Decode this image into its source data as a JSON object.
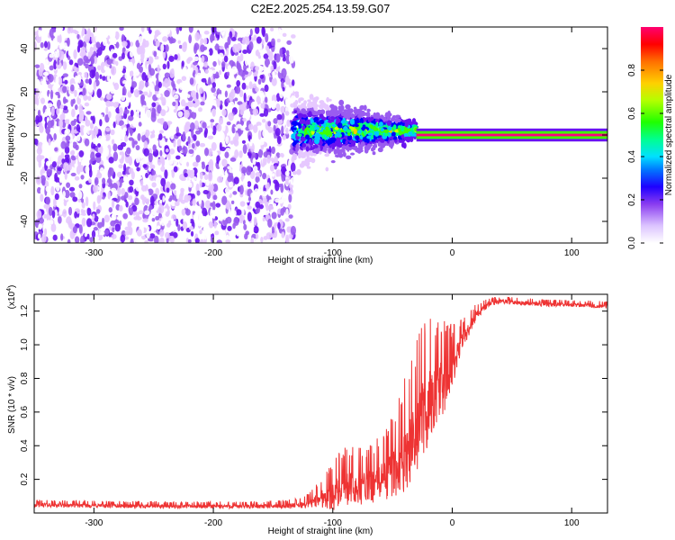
{
  "figure_title": "C2E2.2025.254.13.59.G07",
  "colorbar": {
    "label": "Normalized spectral amplitude",
    "ticks": [
      "0.0",
      "0.2",
      "0.4",
      "0.6",
      "0.8"
    ]
  },
  "chart_data": [
    {
      "type": "heatmap",
      "title": "C2E2.2025.254.13.59.G07",
      "xlabel": "Height of straight line (km)",
      "ylabel": "Frequency (Hz)",
      "xlim": [
        -350,
        130
      ],
      "ylim": [
        -50,
        50
      ],
      "x_ticks": [
        -300,
        -200,
        -100,
        0,
        100
      ],
      "y_ticks": [
        -40,
        -20,
        0,
        20,
        40
      ],
      "x_tick_labels": [
        "-300",
        "-200",
        "-100",
        "0",
        "100"
      ],
      "y_tick_labels": [
        "-40",
        "-20",
        "0",
        "20",
        "40"
      ],
      "colorscale": [
        "#ffffff",
        "#e6c8ff",
        "#9a5cf0",
        "#6a14f0",
        "#0000ff",
        "#00c8ff",
        "#00ff80",
        "#40ff00",
        "#c8ff00",
        "#ffc800",
        "#ff8000",
        "#ff0000",
        "#ff0080"
      ],
      "value_range": [
        0,
        1
      ],
      "regions": [
        {
          "x_range": [
            -350,
            -133
          ],
          "freq_range": [
            -50,
            50
          ],
          "amplitude": 0.1,
          "pattern": "diffuse noise"
        },
        {
          "x_range": [
            -133,
            -30
          ],
          "freq_center": 2,
          "freq_halfwidth_start": 12,
          "freq_halfwidth_end": 3,
          "amplitude_peak": 0.4,
          "pattern": "converging band"
        },
        {
          "x_range": [
            -30,
            130
          ],
          "freq_center": 0,
          "freq_halfwidth": 1,
          "amplitude": 1.0,
          "pattern": "narrow carrier line"
        }
      ],
      "grid": false
    },
    {
      "type": "line",
      "xlabel": "Height of straight line (km)",
      "ylabel": "SNR (10 * v/v)",
      "y_multiplier_label": "(x10",
      "y_multiplier_exp": "4",
      "xlim": [
        -350,
        130
      ],
      "ylim": [
        0,
        13000
      ],
      "x_ticks": [
        -300,
        -200,
        -100,
        0,
        100
      ],
      "y_ticks": [
        2000,
        4000,
        6000,
        8000,
        10000,
        12000
      ],
      "x_tick_labels": [
        "-300",
        "-200",
        "-100",
        "0",
        "100"
      ],
      "y_tick_labels": [
        "0.2",
        "0.4",
        "0.6",
        "0.8",
        "1.0",
        "1.2"
      ],
      "color": "#ee3333",
      "x": [
        -350,
        -300,
        -250,
        -200,
        -150,
        -125,
        -110,
        -100,
        -90,
        -80,
        -70,
        -60,
        -50,
        -40,
        -30,
        -25,
        -20,
        -15,
        -10,
        -5,
        0,
        10,
        20,
        30,
        40,
        60,
        80,
        100,
        130
      ],
      "y": [
        500,
        450,
        420,
        400,
        420,
        500,
        900,
        1200,
        1500,
        1600,
        1700,
        2000,
        2600,
        3500,
        5000,
        6000,
        6500,
        7000,
        7500,
        8000,
        8700,
        10500,
        11800,
        12400,
        12600,
        12500,
        12400,
        12400,
        12300
      ],
      "noise_amplitude": [
        200,
        200,
        200,
        200,
        200,
        300,
        800,
        1500,
        1700,
        1700,
        1600,
        1900,
        2500,
        3200,
        3800,
        4200,
        4000,
        3500,
        3000,
        2500,
        1800,
        900,
        500,
        300,
        200,
        200,
        200,
        200,
        200
      ],
      "grid": false
    }
  ]
}
